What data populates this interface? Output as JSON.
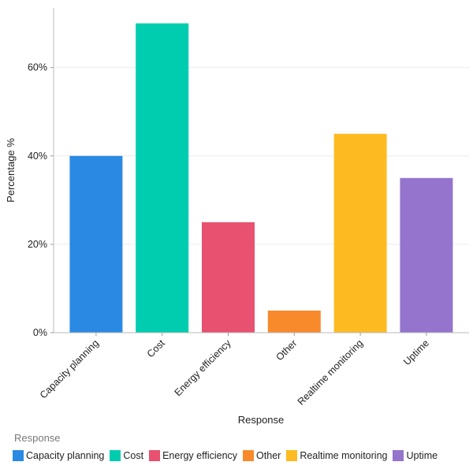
{
  "chart_data": {
    "type": "bar",
    "title": "",
    "xlabel": "Response",
    "ylabel": "Percentage %",
    "categories": [
      "Capacity planning",
      "Cost",
      "Energy efficiency",
      "Other",
      "Realtime monitoring",
      "Uptime"
    ],
    "values": [
      40,
      70,
      25,
      5,
      45,
      35
    ],
    "colors": [
      "#2a8ae3",
      "#00cdb0",
      "#e8516f",
      "#f98a2b",
      "#fdbb21",
      "#9474cd"
    ],
    "ylim": [
      0,
      73.5
    ],
    "yticks": [
      0,
      20,
      40,
      60
    ],
    "ytick_labels": [
      "0%",
      "20%",
      "40%",
      "60%"
    ],
    "grid": true,
    "legend": {
      "title": "Response",
      "placement": "bottom-left"
    }
  }
}
